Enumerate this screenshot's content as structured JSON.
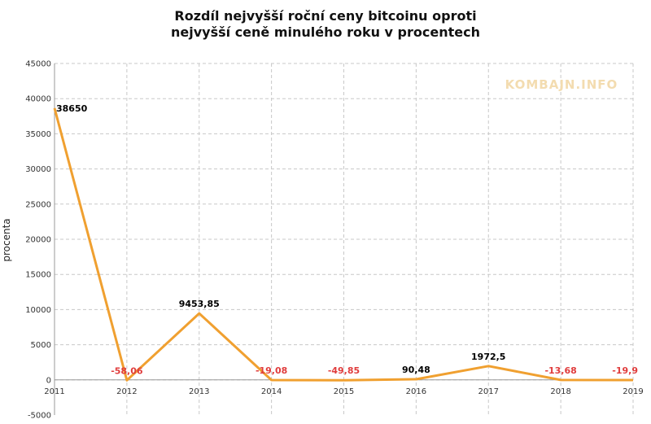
{
  "chart_data": {
    "type": "line",
    "title_lines": [
      "Rozdíl nejvyšší roční ceny bitcoinu oproti",
      "nejvyšší ceně minulého roku v procentech"
    ],
    "xlabel": "",
    "ylabel": "procenta",
    "ylim": [
      -5000,
      45000
    ],
    "yticks": [
      "-5000",
      "0",
      "5000",
      "10000",
      "15000",
      "20000",
      "25000",
      "30000",
      "35000",
      "40000",
      "45000"
    ],
    "ytick_values": [
      -5000,
      0,
      5000,
      10000,
      15000,
      20000,
      25000,
      30000,
      35000,
      40000,
      45000
    ],
    "categories": [
      "2011",
      "2012",
      "2013",
      "2014",
      "2015",
      "2016",
      "2017",
      "2018",
      "2019"
    ],
    "series": [
      {
        "values": [
          38650,
          -58.06,
          9453.85,
          -19.08,
          -49.85,
          90.48,
          1972.5,
          -13.68,
          -19.9
        ],
        "labels": [
          "38650",
          "-58,06",
          "9453,85",
          "-19,08",
          "-49,85",
          "90,48",
          "1972,5",
          "-13,68",
          "-19,9"
        ],
        "color": "#F0A030"
      }
    ],
    "grid": true,
    "positive_label_color": "#000000",
    "negative_label_color": "#E03C3C",
    "watermark": "KOMBAJN.INFO",
    "watermark_color": "#F3DCB0"
  }
}
